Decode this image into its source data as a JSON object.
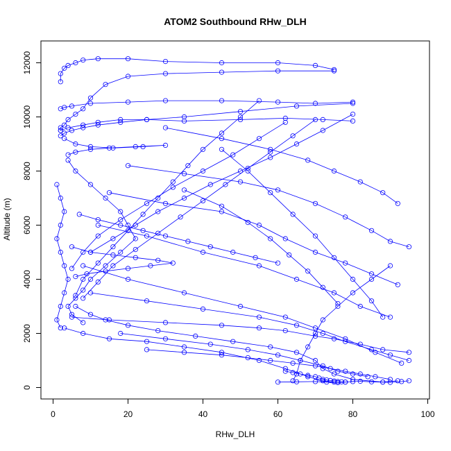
{
  "chart_data": {
    "type": "line",
    "title": "ATOM2 Southbound RHw_DLH",
    "xlabel": "RHw_DLH",
    "ylabel": "Altitude (m)",
    "xlim": [
      0,
      100
    ],
    "ylim": [
      0,
      12000
    ],
    "x_ticks": [
      0,
      20,
      40,
      60,
      80,
      100
    ],
    "y_ticks": [
      0,
      2000,
      4000,
      6000,
      8000,
      10000,
      12000
    ],
    "x_tick_labels": [
      "0",
      "20",
      "40",
      "60",
      "80",
      "100"
    ],
    "y_tick_labels": [
      "0",
      "2000",
      "4000",
      "6000",
      "8000",
      "10000",
      "12000"
    ],
    "marker": "open-circle",
    "grid": false,
    "legend": "none",
    "color": "#0000ff",
    "series": [
      {
        "x": [
          2,
          2,
          3,
          4,
          6,
          8,
          12,
          20,
          30,
          45,
          60,
          70,
          75
        ],
        "y": [
          11300,
          11600,
          11800,
          11900,
          12000,
          12100,
          12150,
          12150,
          12050,
          12000,
          12000,
          11900,
          11750
        ]
      },
      {
        "x": [
          75,
          60,
          45,
          30,
          20,
          14,
          10,
          8,
          6,
          4,
          3,
          2,
          2
        ],
        "y": [
          11700,
          11700,
          11650,
          11600,
          11500,
          11200,
          10700,
          10300,
          10100,
          9900,
          9700,
          9600,
          9500
        ]
      },
      {
        "x": [
          2,
          3,
          5,
          10,
          20,
          30,
          45,
          60,
          70,
          80
        ],
        "y": [
          10300,
          10350,
          10400,
          10500,
          10550,
          10600,
          10600,
          10550,
          10500,
          10550
        ]
      },
      {
        "x": [
          80,
          65,
          50,
          35,
          25,
          18,
          12,
          8,
          5,
          3,
          2
        ],
        "y": [
          10500,
          10400,
          10200,
          10000,
          9900,
          9800,
          9700,
          9600,
          9500,
          9400,
          9300
        ]
      },
      {
        "x": [
          2,
          4,
          8,
          12,
          18,
          25,
          35,
          50,
          62,
          72,
          80
        ],
        "y": [
          9500,
          9600,
          9700,
          9800,
          9900,
          9900,
          9850,
          9900,
          9950,
          9900,
          9850
        ]
      },
      {
        "x": [
          3,
          6,
          10,
          16,
          24,
          30,
          22,
          15,
          10,
          6,
          4
        ],
        "y": [
          9200,
          9000,
          8900,
          8850,
          8900,
          8950,
          8900,
          8850,
          8800,
          8700,
          8600
        ]
      },
      {
        "x": [
          4,
          6,
          10,
          14,
          18,
          20,
          22,
          18,
          14,
          10,
          8,
          6,
          4,
          5,
          8
        ],
        "y": [
          8400,
          8000,
          7500,
          7000,
          6500,
          6000,
          5500,
          5000,
          4500,
          4000,
          3600,
          3300,
          3000,
          2700,
          2400
        ]
      },
      {
        "x": [
          6,
          10,
          14,
          20,
          28,
          38,
          48,
          58,
          65,
          70,
          72,
          75,
          80,
          88,
          92
        ],
        "y": [
          3000,
          2700,
          2500,
          2300,
          2100,
          1900,
          1700,
          1500,
          1300,
          1000,
          700,
          500,
          300,
          200,
          250
        ]
      },
      {
        "x": [
          3,
          8,
          15,
          25,
          35,
          45,
          55,
          62,
          68,
          72,
          75
        ],
        "y": [
          2200,
          2000,
          1800,
          1700,
          1500,
          1300,
          1000,
          700,
          400,
          250,
          200
        ]
      },
      {
        "x": [
          10,
          25,
          40,
          55,
          65,
          72,
          78,
          85,
          90,
          95
        ],
        "y": [
          3500,
          3200,
          2900,
          2600,
          2300,
          2000,
          1700,
          1400,
          1200,
          1000
        ]
      },
      {
        "x": [
          5,
          15,
          30,
          45,
          55,
          62,
          70,
          75,
          82,
          88,
          95
        ],
        "y": [
          2600,
          2500,
          2400,
          2300,
          2200,
          2100,
          1900,
          1800,
          1600,
          1400,
          1300
        ]
      },
      {
        "x": [
          8,
          20,
          35,
          50,
          62,
          70,
          78,
          86,
          93
        ],
        "y": [
          4500,
          4000,
          3500,
          3000,
          2600,
          2200,
          1800,
          1300,
          900
        ]
      },
      {
        "x": [
          12,
          25,
          40,
          55,
          65,
          75,
          82,
          90
        ],
        "y": [
          6000,
          5600,
          5000,
          4500,
          4000,
          3500,
          3000,
          2600
        ]
      },
      {
        "x": [
          15,
          30,
          45,
          55,
          62,
          70,
          78,
          85,
          92
        ],
        "y": [
          7200,
          6800,
          6500,
          6000,
          5500,
          5000,
          4600,
          4200,
          3800
        ]
      },
      {
        "x": [
          20,
          35,
          50,
          60,
          70,
          78,
          85,
          90,
          95
        ],
        "y": [
          8200,
          7900,
          7600,
          7300,
          6800,
          6300,
          5800,
          5400,
          5200
        ]
      },
      {
        "x": [
          30,
          45,
          58,
          68,
          75,
          82,
          88,
          92
        ],
        "y": [
          9600,
          9200,
          8800,
          8400,
          8000,
          7600,
          7200,
          6800
        ]
      },
      {
        "x": [
          90,
          85,
          80,
          76,
          72,
          70,
          68,
          66,
          65,
          64
        ],
        "y": [
          4500,
          4000,
          3500,
          3000,
          2500,
          2000,
          1500,
          1000,
          500,
          250
        ]
      },
      {
        "x": [
          62,
          55,
          48,
          40,
          32,
          25,
          18,
          12,
          8,
          5
        ],
        "y": [
          9800,
          9200,
          8600,
          8000,
          7400,
          6800,
          6200,
          5600,
          5000,
          4400
        ]
      },
      {
        "x": [
          80,
          72,
          65,
          58,
          50,
          42,
          35,
          28,
          22,
          16,
          10
        ],
        "y": [
          10100,
          9500,
          9000,
          8500,
          8000,
          7500,
          7000,
          6500,
          6000,
          5500,
          5000
        ]
      },
      {
        "x": [
          70,
          64,
          58,
          52,
          46,
          40,
          34,
          28,
          22,
          16,
          12,
          8
        ],
        "y": [
          9900,
          9300,
          8700,
          8100,
          7500,
          6900,
          6300,
          5700,
          5100,
          4500,
          3900,
          3300
        ]
      },
      {
        "x": [
          55,
          50,
          45,
          40,
          36,
          32,
          28,
          24,
          20,
          16,
          12,
          8,
          6
        ],
        "y": [
          10600,
          10000,
          9400,
          8800,
          8200,
          7600,
          7000,
          6400,
          5800,
          5200,
          4600,
          4000,
          3400
        ]
      },
      {
        "x": [
          1,
          2,
          3,
          2,
          1,
          2,
          3,
          4,
          3,
          2,
          1,
          2
        ],
        "y": [
          7500,
          7000,
          6500,
          6000,
          5500,
          5000,
          4500,
          4000,
          3500,
          3000,
          2500,
          2200
        ]
      },
      {
        "x": [
          60,
          65,
          70,
          73,
          76,
          78,
          80,
          82,
          85,
          88,
          90,
          93,
          95
        ],
        "y": [
          200,
          210,
          220,
          200,
          180,
          200,
          220,
          230,
          210,
          200,
          190,
          220,
          250
        ]
      },
      {
        "x": [
          62,
          64,
          66,
          68,
          70,
          71,
          72,
          73,
          74,
          75,
          76,
          77,
          78
        ],
        "y": [
          600,
          550,
          500,
          450,
          400,
          350,
          300,
          280,
          260,
          240,
          220,
          210,
          200
        ]
      },
      {
        "x": [
          25,
          35,
          45,
          52,
          58,
          64,
          70,
          74,
          78,
          82,
          86,
          90
        ],
        "y": [
          1400,
          1300,
          1200,
          1100,
          1000,
          900,
          800,
          700,
          600,
          500,
          400,
          300
        ]
      },
      {
        "x": [
          18,
          30,
          42,
          52,
          60,
          66,
          72,
          76,
          80,
          84
        ],
        "y": [
          2000,
          1800,
          1600,
          1400,
          1200,
          1000,
          800,
          600,
          500,
          400
        ]
      },
      {
        "x": [
          35,
          45,
          52,
          58,
          63,
          68,
          72,
          76
        ],
        "y": [
          7300,
          6700,
          6100,
          5500,
          4900,
          4300,
          3700,
          3100
        ]
      },
      {
        "x": [
          45,
          52,
          58,
          64,
          70,
          75,
          80,
          85,
          88
        ],
        "y": [
          8800,
          8000,
          7200,
          6400,
          5600,
          4800,
          4000,
          3200,
          2600
        ]
      },
      {
        "x": [
          5,
          10,
          16,
          22,
          28,
          32,
          26,
          20,
          14,
          9,
          6
        ],
        "y": [
          5200,
          5000,
          4900,
          4800,
          4700,
          4600,
          4500,
          4400,
          4300,
          4200,
          4100
        ]
      },
      {
        "x": [
          7,
          12,
          18,
          24,
          30,
          36,
          42,
          48,
          54,
          60
        ],
        "y": [
          6400,
          6200,
          6000,
          5800,
          5600,
          5400,
          5200,
          5000,
          4800,
          4600
        ]
      }
    ]
  }
}
